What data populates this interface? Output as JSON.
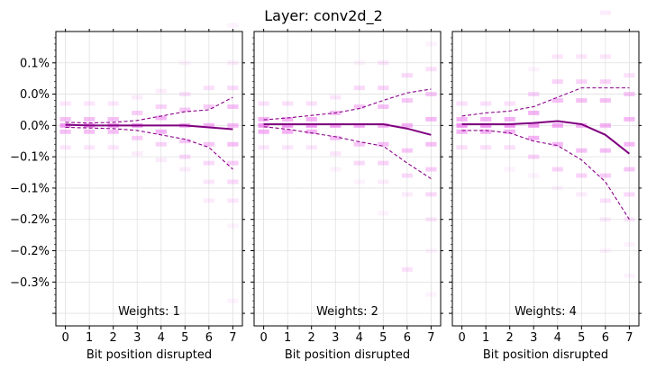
{
  "figure": {
    "title": "Layer: conv2d_2"
  },
  "colors": {
    "heat": "#ee82ee",
    "mean": "#800080",
    "spread": "#8b008b",
    "grid": "#e0e0e0"
  },
  "y_tick_labels": [
    "0.1%",
    "0.0%",
    "0.0%",
    "−0.1%",
    "−0.1%",
    "−0.2%",
    "−0.2%",
    "−0.3%"
  ],
  "chart_data": [
    {
      "type": "line",
      "annotation": "Weights: 1",
      "xlabel": "Bit position disrupted",
      "x": [
        0,
        1,
        2,
        3,
        4,
        5,
        6,
        7
      ],
      "ylim": [
        -0.0032,
        0.0015
      ],
      "y_ticks": [
        0.001,
        0.0005,
        0.0,
        -0.0005,
        -0.001,
        -0.0015,
        -0.002,
        -0.0025,
        -0.003
      ],
      "grid": true,
      "series": [
        {
          "role": "mean",
          "values": [
            1e-05,
            0.0,
            0.0,
            0.0,
            0.0,
            0.0,
            -3e-05,
            -6e-05
          ]
        },
        {
          "role": "upper",
          "values": [
            5e-05,
            4e-05,
            5e-05,
            8e-05,
            0.00015,
            0.00022,
            0.00025,
            0.00045
          ]
        },
        {
          "role": "lower",
          "values": [
            -3e-05,
            -4e-05,
            -5e-05,
            -8e-05,
            -0.00015,
            -0.00022,
            -0.00035,
            -0.0007
          ]
        }
      ],
      "distribution": [
        {
          "x": 0,
          "bins": [
            [
              0.00035,
              0.2
            ],
            [
              0.0001,
              0.5
            ],
            [
              0.0,
              0.8
            ],
            [
              -0.0001,
              0.5
            ],
            [
              -0.00035,
              0.2
            ]
          ]
        },
        {
          "x": 1,
          "bins": [
            [
              0.00035,
              0.2
            ],
            [
              0.0001,
              0.5
            ],
            [
              0.0,
              0.8
            ],
            [
              -0.0001,
              0.5
            ],
            [
              -0.00035,
              0.2
            ]
          ]
        },
        {
          "x": 2,
          "bins": [
            [
              0.00035,
              0.2
            ],
            [
              0.0001,
              0.5
            ],
            [
              0.0,
              0.8
            ],
            [
              -0.0001,
              0.5
            ],
            [
              -0.00035,
              0.2
            ]
          ]
        },
        {
          "x": 3,
          "bins": [
            [
              0.00045,
              0.15
            ],
            [
              0.0002,
              0.4
            ],
            [
              0.0,
              0.75
            ],
            [
              -0.0002,
              0.4
            ],
            [
              -0.00045,
              0.15
            ]
          ]
        },
        {
          "x": 4,
          "bins": [
            [
              0.00055,
              0.15
            ],
            [
              0.0003,
              0.35
            ],
            [
              0.00012,
              0.6
            ],
            [
              -0.0001,
              0.6
            ],
            [
              -0.0003,
              0.35
            ],
            [
              -0.00055,
              0.15
            ]
          ]
        },
        {
          "x": 5,
          "bins": [
            [
              0.001,
              0.1
            ],
            [
              0.0005,
              0.25
            ],
            [
              0.00025,
              0.45
            ],
            [
              0.0,
              0.65
            ],
            [
              -0.00025,
              0.45
            ],
            [
              -0.0005,
              0.3
            ],
            [
              -0.0007,
              0.15
            ]
          ]
        },
        {
          "x": 6,
          "bins": [
            [
              0.0006,
              0.25
            ],
            [
              0.0003,
              0.4
            ],
            [
              0.0,
              0.6
            ],
            [
              -0.0003,
              0.45
            ],
            [
              -0.0006,
              0.3
            ],
            [
              -0.0009,
              0.2
            ],
            [
              -0.0012,
              0.15
            ]
          ]
        },
        {
          "x": 7,
          "bins": [
            [
              0.0016,
              0.1
            ],
            [
              0.001,
              0.15
            ],
            [
              0.0006,
              0.3
            ],
            [
              0.0003,
              0.5
            ],
            [
              0.0,
              0.55
            ],
            [
              -0.0003,
              0.5
            ],
            [
              -0.0006,
              0.4
            ],
            [
              -0.0009,
              0.3
            ],
            [
              -0.0012,
              0.2
            ],
            [
              -0.0016,
              0.1
            ],
            [
              -0.0028,
              0.1
            ]
          ]
        }
      ]
    },
    {
      "type": "line",
      "annotation": "Weights: 2",
      "xlabel": "Bit position disrupted",
      "x": [
        0,
        1,
        2,
        3,
        4,
        5,
        6,
        7
      ],
      "ylim": [
        -0.0032,
        0.0015
      ],
      "y_ticks": [
        0.001,
        0.0005,
        0.0,
        -0.0005,
        -0.001,
        -0.0015,
        -0.002,
        -0.0025,
        -0.003
      ],
      "grid": true,
      "series": [
        {
          "role": "mean",
          "values": [
            2e-05,
            2e-05,
            2e-05,
            2e-05,
            2e-05,
            2e-05,
            -5e-05,
            -0.00015
          ]
        },
        {
          "role": "upper",
          "values": [
            9e-05,
            0.00012,
            0.00016,
            0.0002,
            0.00027,
            0.0004,
            0.00052,
            0.00058
          ]
        },
        {
          "role": "lower",
          "values": [
            -2e-05,
            -6e-05,
            -0.00012,
            -0.00018,
            -0.00026,
            -0.00033,
            -0.0006,
            -0.00085
          ]
        }
      ],
      "distribution": [
        {
          "x": 0,
          "bins": [
            [
              0.00035,
              0.25
            ],
            [
              0.0001,
              0.6
            ],
            [
              0.0,
              0.85
            ],
            [
              -0.0001,
              0.6
            ],
            [
              -0.00035,
              0.2
            ]
          ]
        },
        {
          "x": 1,
          "bins": [
            [
              0.00035,
              0.25
            ],
            [
              0.0001,
              0.6
            ],
            [
              0.0,
              0.85
            ],
            [
              -0.0001,
              0.6
            ],
            [
              -0.00035,
              0.2
            ]
          ]
        },
        {
          "x": 2,
          "bins": [
            [
              0.00035,
              0.25
            ],
            [
              0.0001,
              0.6
            ],
            [
              0.0,
              0.85
            ],
            [
              -0.0001,
              0.6
            ],
            [
              -0.00035,
              0.2
            ]
          ]
        },
        {
          "x": 3,
          "bins": [
            [
              0.00045,
              0.2
            ],
            [
              0.0002,
              0.5
            ],
            [
              0.0,
              0.8
            ],
            [
              -0.0002,
              0.5
            ],
            [
              -0.00045,
              0.2
            ],
            [
              -0.0007,
              0.1
            ]
          ]
        },
        {
          "x": 4,
          "bins": [
            [
              0.001,
              0.1
            ],
            [
              0.0006,
              0.3
            ],
            [
              0.0003,
              0.45
            ],
            [
              0.0,
              0.7
            ],
            [
              -0.0003,
              0.45
            ],
            [
              -0.0006,
              0.3
            ],
            [
              -0.0009,
              0.1
            ]
          ]
        },
        {
          "x": 5,
          "bins": [
            [
              0.001,
              0.2
            ],
            [
              0.0006,
              0.35
            ],
            [
              0.0003,
              0.5
            ],
            [
              0.0,
              0.65
            ],
            [
              -0.0003,
              0.5
            ],
            [
              -0.0006,
              0.35
            ],
            [
              -0.0009,
              0.15
            ],
            [
              -0.0014,
              0.1
            ]
          ]
        },
        {
          "x": 6,
          "bins": [
            [
              0.0008,
              0.3
            ],
            [
              0.0004,
              0.45
            ],
            [
              0.0,
              0.6
            ],
            [
              -0.0004,
              0.45
            ],
            [
              -0.0008,
              0.3
            ],
            [
              -0.0011,
              0.15
            ],
            [
              -0.0023,
              0.25
            ]
          ]
        },
        {
          "x": 7,
          "bins": [
            [
              0.0013,
              0.1
            ],
            [
              0.0009,
              0.25
            ],
            [
              0.0005,
              0.45
            ],
            [
              0.0001,
              0.55
            ],
            [
              -0.0003,
              0.5
            ],
            [
              -0.0007,
              0.4
            ],
            [
              -0.0011,
              0.3
            ],
            [
              -0.0015,
              0.2
            ],
            [
              -0.002,
              0.1
            ],
            [
              -0.0027,
              0.1
            ]
          ]
        }
      ]
    },
    {
      "type": "line",
      "annotation": "Weights: 4",
      "xlabel": "Bit position disrupted",
      "x": [
        0,
        1,
        2,
        3,
        4,
        5,
        6,
        7
      ],
      "ylim": [
        -0.0032,
        0.0015
      ],
      "y_ticks": [
        0.001,
        0.0005,
        0.0,
        -0.0005,
        -0.001,
        -0.0015,
        -0.002,
        -0.0025,
        -0.003
      ],
      "grid": true,
      "series": [
        {
          "role": "mean",
          "values": [
            2e-05,
            2e-05,
            2e-05,
            4e-05,
            7e-05,
            2e-05,
            -0.00015,
            -0.00045
          ]
        },
        {
          "role": "upper",
          "values": [
            0.00015,
            0.0002,
            0.00023,
            0.0003,
            0.00045,
            0.0006,
            0.0006,
            0.0006
          ]
        },
        {
          "role": "lower",
          "values": [
            -8e-05,
            -8e-05,
            -0.00012,
            -0.00025,
            -0.00032,
            -0.00055,
            -0.0009,
            -0.0015
          ]
        }
      ],
      "distribution": [
        {
          "x": 0,
          "bins": [
            [
              0.00035,
              0.25
            ],
            [
              0.0001,
              0.6
            ],
            [
              0.0,
              0.85
            ],
            [
              -0.0001,
              0.6
            ],
            [
              -0.00035,
              0.25
            ]
          ]
        },
        {
          "x": 1,
          "bins": [
            [
              0.00035,
              0.25
            ],
            [
              0.0001,
              0.6
            ],
            [
              0.0,
              0.85
            ],
            [
              -0.0001,
              0.6
            ],
            [
              -0.00035,
              0.25
            ]
          ]
        },
        {
          "x": 2,
          "bins": [
            [
              0.00035,
              0.25
            ],
            [
              0.0001,
              0.6
            ],
            [
              0.0,
              0.85
            ],
            [
              -0.0001,
              0.6
            ],
            [
              -0.00035,
              0.25
            ],
            [
              -0.0007,
              0.1
            ]
          ]
        },
        {
          "x": 3,
          "bins": [
            [
              0.0009,
              0.1
            ],
            [
              0.0005,
              0.35
            ],
            [
              0.0002,
              0.6
            ],
            [
              0.0,
              0.8
            ],
            [
              -0.0002,
              0.6
            ],
            [
              -0.0005,
              0.35
            ],
            [
              -0.0008,
              0.1
            ]
          ]
        },
        {
          "x": 4,
          "bins": [
            [
              0.0011,
              0.2
            ],
            [
              0.0007,
              0.35
            ],
            [
              0.0004,
              0.5
            ],
            [
              0.0,
              0.7
            ],
            [
              -0.0003,
              0.55
            ],
            [
              -0.0007,
              0.35
            ],
            [
              -0.001,
              0.1
            ]
          ]
        },
        {
          "x": 5,
          "bins": [
            [
              0.0011,
              0.2
            ],
            [
              0.0007,
              0.35
            ],
            [
              0.0004,
              0.5
            ],
            [
              0.0,
              0.65
            ],
            [
              -0.0004,
              0.5
            ],
            [
              -0.0008,
              0.35
            ],
            [
              -0.0011,
              0.15
            ]
          ]
        },
        {
          "x": 6,
          "bins": [
            [
              0.0018,
              0.15
            ],
            [
              0.0011,
              0.2
            ],
            [
              0.0007,
              0.35
            ],
            [
              0.0004,
              0.5
            ],
            [
              0.0,
              0.6
            ],
            [
              -0.0004,
              0.5
            ],
            [
              -0.0008,
              0.4
            ],
            [
              -0.0012,
              0.25
            ],
            [
              -0.0015,
              0.15
            ],
            [
              -0.002,
              0.1
            ]
          ]
        },
        {
          "x": 7,
          "bins": [
            [
              0.0008,
              0.25
            ],
            [
              0.0005,
              0.45
            ],
            [
              0.0001,
              0.55
            ],
            [
              -0.0003,
              0.55
            ],
            [
              -0.0007,
              0.45
            ],
            [
              -0.0011,
              0.3
            ],
            [
              -0.0015,
              0.2
            ],
            [
              -0.0019,
              0.1
            ],
            [
              -0.0024,
              0.1
            ]
          ]
        }
      ]
    }
  ]
}
